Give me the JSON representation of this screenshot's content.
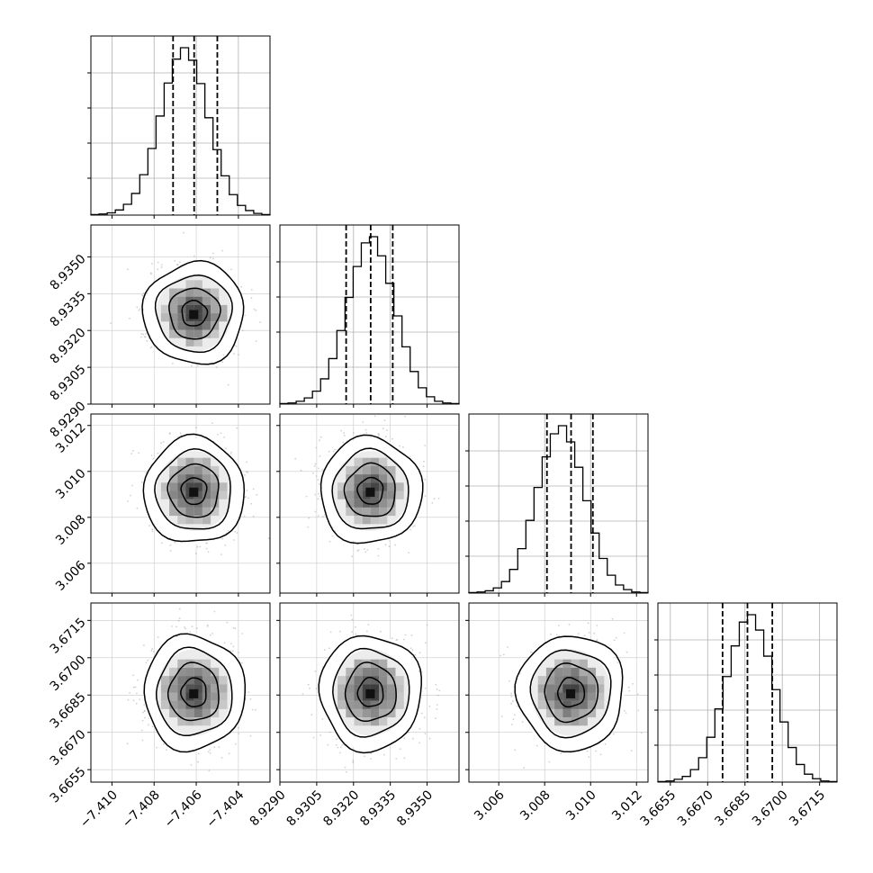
{
  "chart_data": {
    "type": "corner",
    "parameters": [
      {
        "name": "",
        "range": [
          -7.411,
          -7.4025
        ],
        "ticks": [
          -7.41,
          -7.408,
          -7.406,
          -7.404
        ],
        "tick_labels": [
          "−7.410",
          "−7.408",
          "−7.406",
          "−7.404"
        ],
        "center": -7.4061,
        "sigma": 0.00098,
        "quantiles": [
          -7.4071,
          -7.4061,
          -7.405
        ]
      },
      {
        "name": "",
        "range": [
          8.929,
          8.9363
        ],
        "ticks": [
          8.929,
          8.9305,
          8.932,
          8.9335,
          8.935
        ],
        "tick_labels": [
          "8.9290",
          "8.9305",
          "8.9320",
          "8.9335",
          "8.9350"
        ],
        "center": 8.9327,
        "sigma": 0.00085,
        "quantiles": [
          8.9317,
          8.9327,
          8.9336
        ]
      },
      {
        "name": "",
        "range": [
          3.0047,
          3.0125
        ],
        "ticks": [
          3.006,
          3.008,
          3.01,
          3.012
        ],
        "tick_labels": [
          "3.006",
          "3.008",
          "3.010",
          "3.012"
        ],
        "y_tick_labels": [
          "3.006",
          "3.008",
          "3.010",
          "3.012"
        ],
        "center": 3.00915,
        "sigma": 0.00095,
        "quantiles": [
          3.0081,
          3.00915,
          3.0101
        ]
      },
      {
        "name": "",
        "range": [
          3.665,
          3.6722
        ],
        "ticks": [
          3.6655,
          3.667,
          3.6685,
          3.67,
          3.6715
        ],
        "tick_labels": [
          "3.6655",
          "3.6670",
          "3.6685",
          "3.6700",
          "3.6715"
        ],
        "center": 3.6686,
        "sigma": 0.00095,
        "quantiles": [
          3.6676,
          3.6686,
          3.6696
        ]
      }
    ],
    "histogram_counts": [
      [
        1,
        2,
        4,
        9,
        19,
        38,
        71,
        117,
        174,
        232,
        274,
        294,
        272,
        231,
        171,
        115,
        69,
        36,
        17,
        8,
        3,
        1
      ],
      [
        1,
        2,
        5,
        11,
        23,
        45,
        81,
        131,
        190,
        245,
        287,
        298,
        264,
        215,
        157,
        102,
        58,
        29,
        13,
        5,
        2,
        1
      ],
      [
        1,
        2,
        4,
        9,
        20,
        41,
        77,
        126,
        183,
        236,
        276,
        290,
        262,
        218,
        160,
        104,
        60,
        31,
        14,
        6,
        2,
        1
      ],
      [
        1,
        2,
        5,
        10,
        22,
        43,
        79,
        129,
        186,
        240,
        282,
        295,
        268,
        222,
        163,
        106,
        61,
        31,
        14,
        6,
        2,
        1
      ]
    ],
    "histogram_bins": 22,
    "contour_levels_sigma": [
      0.5,
      1.0,
      1.5,
      2.0
    ],
    "grid": true,
    "quantile_line_style": "dashed"
  }
}
